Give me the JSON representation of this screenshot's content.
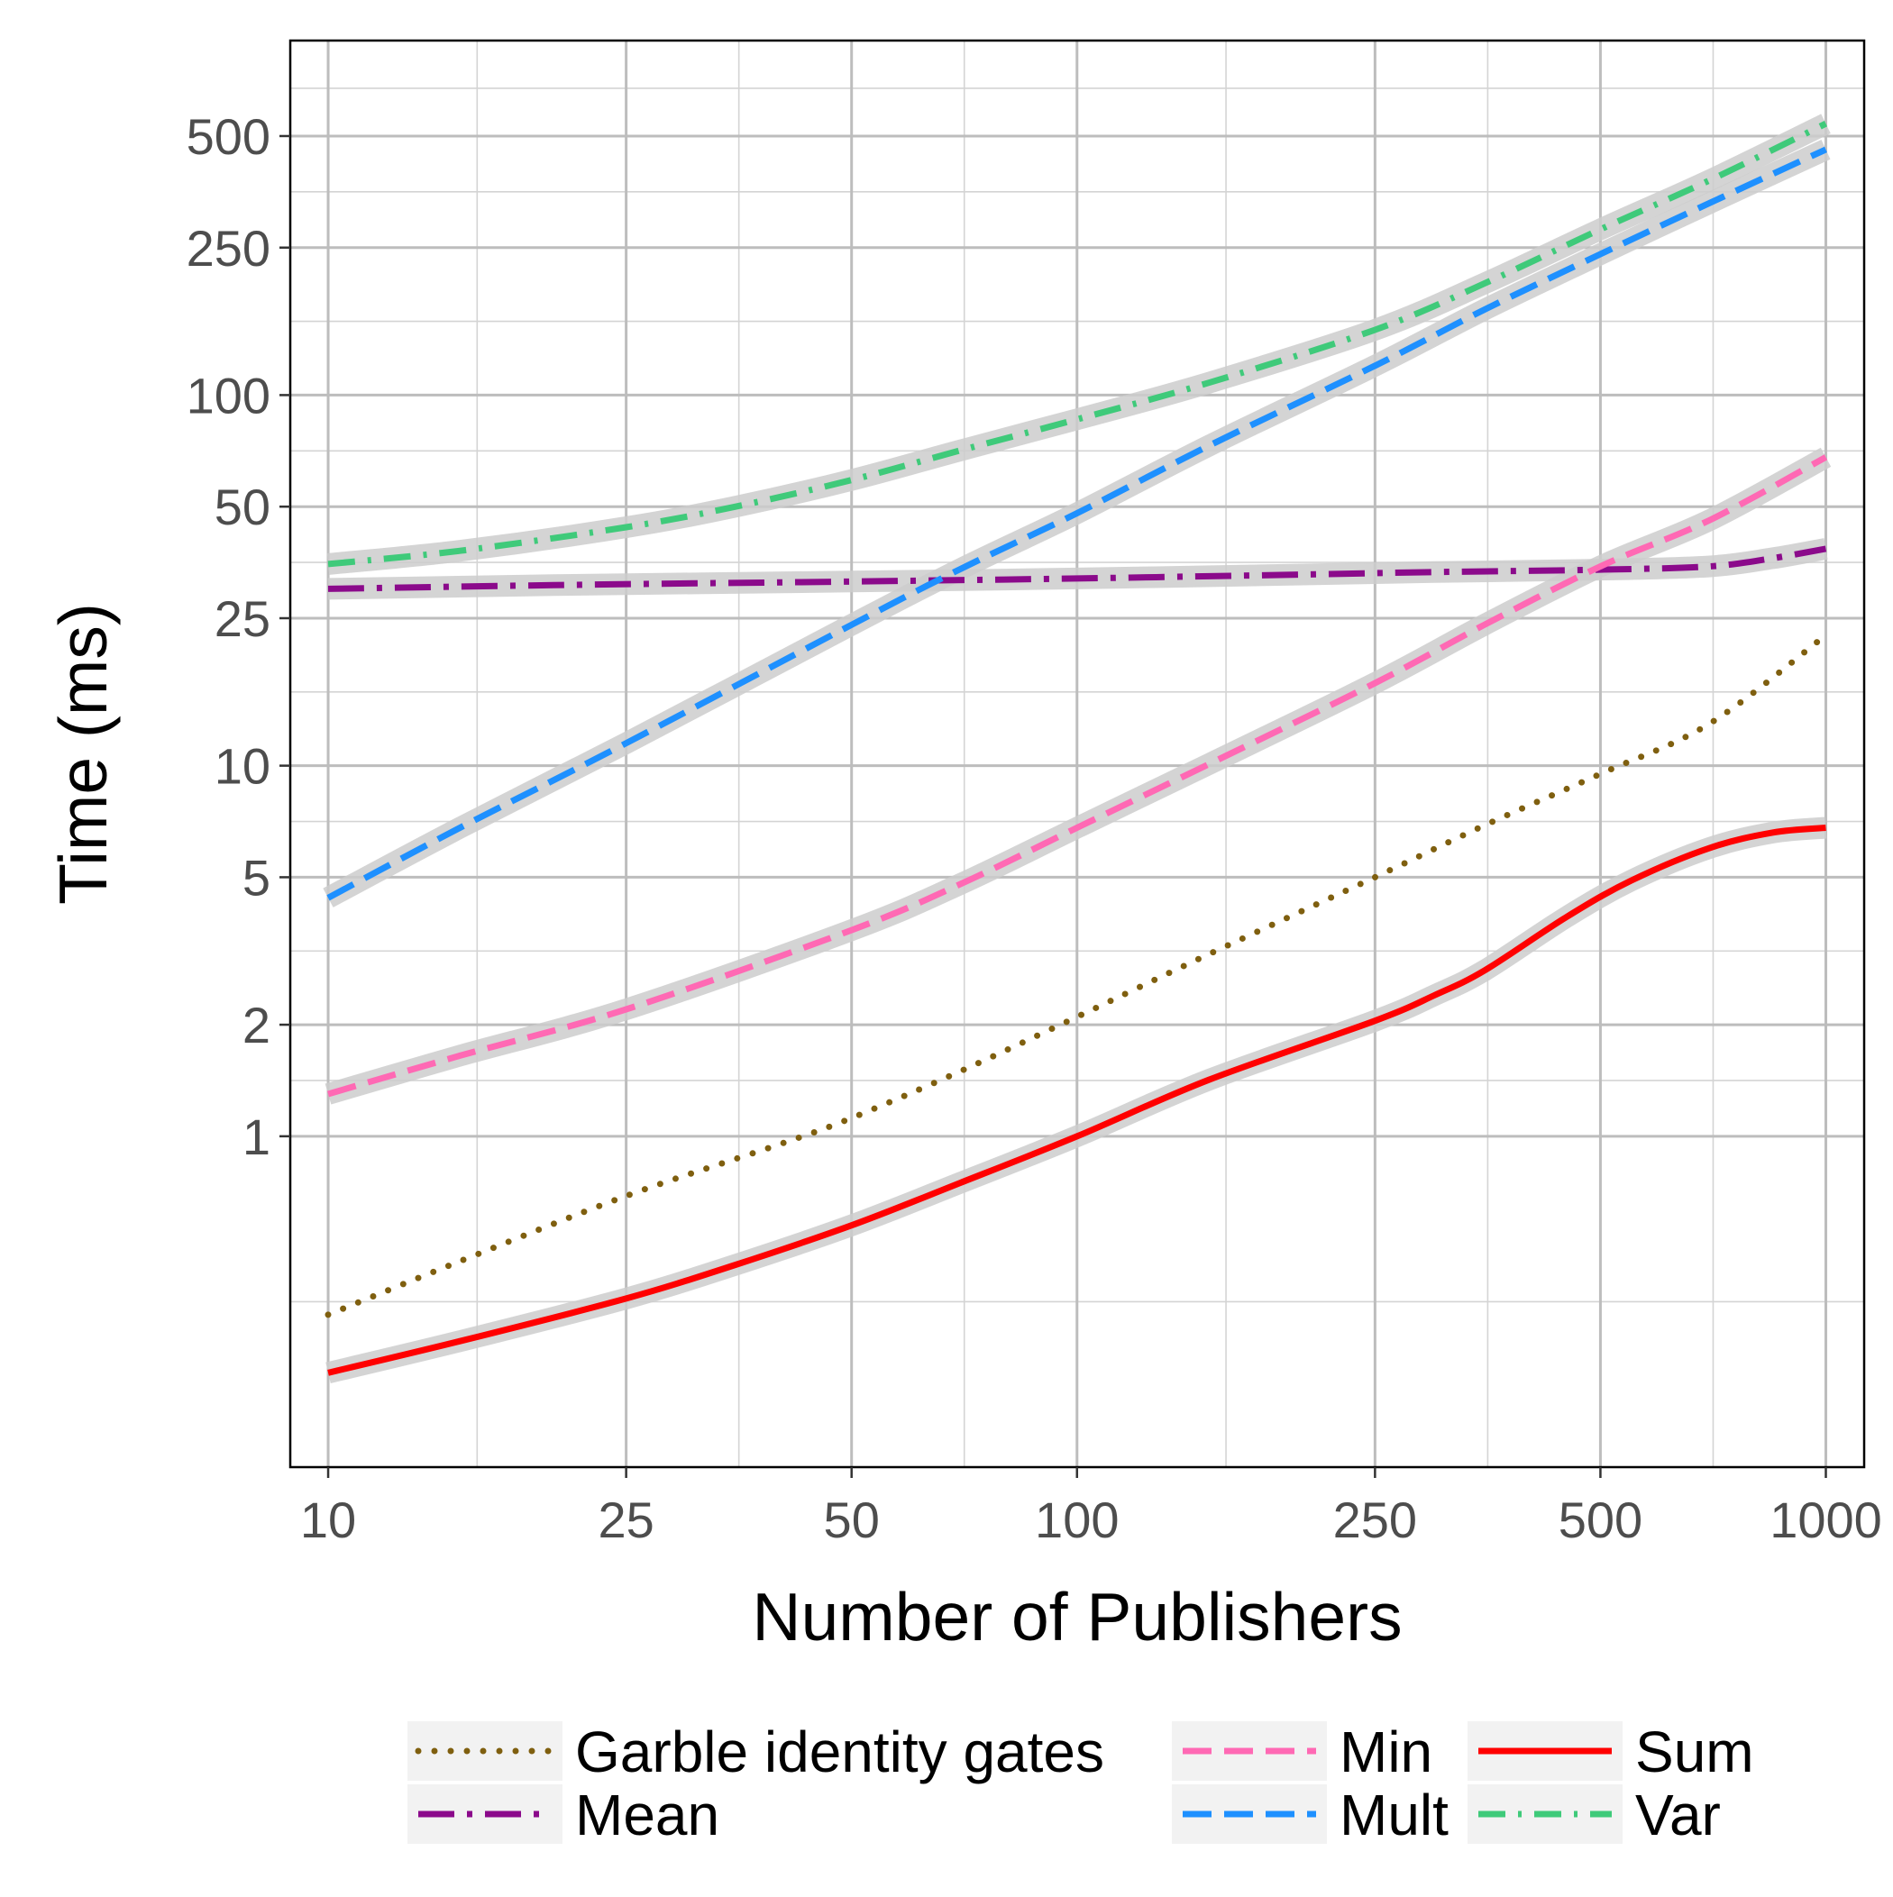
{
  "chart_data": {
    "type": "line",
    "xlabel": "Number of Publishers",
    "ylabel": "Time (ms)",
    "x_scale": "log",
    "y_scale": "log",
    "xlim": [
      8.9,
      1125
    ],
    "ylim": [
      0.128,
      905
    ],
    "x_ticks": [
      10,
      25,
      50,
      100,
      250,
      500,
      1000
    ],
    "x_tick_labels": [
      "10",
      "25",
      "50",
      "100",
      "250",
      "500",
      "1000"
    ],
    "y_ticks": [
      1,
      2,
      5,
      10,
      25,
      50,
      100,
      250,
      500
    ],
    "y_tick_labels": [
      "1",
      "2",
      "5",
      "10",
      "25",
      "50",
      "100",
      "250",
      "500"
    ],
    "grid": true,
    "legend_position": "bottom",
    "series": [
      {
        "name": "Garble identity gates",
        "color": "#7f5f0f",
        "dash": "dotted",
        "band": false,
        "points": [
          [
            10,
            0.33
          ],
          [
            15,
            0.46
          ],
          [
            25,
            0.69
          ],
          [
            40,
            0.95
          ],
          [
            50,
            1.12
          ],
          [
            70,
            1.5
          ],
          [
            100,
            2.1
          ],
          [
            150,
            3.1
          ],
          [
            250,
            5.0
          ],
          [
            350,
            6.9
          ],
          [
            500,
            9.5
          ],
          [
            700,
            13.0
          ],
          [
            1000,
            22.5
          ]
        ]
      },
      {
        "name": "Mean",
        "color": "#8b0a8b",
        "dash": "longdash-dot",
        "band": true,
        "points": [
          [
            10,
            30.0
          ],
          [
            20,
            30.7
          ],
          [
            50,
            31.4
          ],
          [
            100,
            32.0
          ],
          [
            200,
            32.8
          ],
          [
            300,
            33.3
          ],
          [
            500,
            33.8
          ],
          [
            700,
            34.5
          ],
          [
            850,
            36.3
          ],
          [
            1000,
            38.5
          ]
        ]
      },
      {
        "name": "Min",
        "color": "#ff69b4",
        "dash": "dashed",
        "band": true,
        "points": [
          [
            10,
            1.3
          ],
          [
            15,
            1.65
          ],
          [
            25,
            2.2
          ],
          [
            50,
            3.6
          ],
          [
            70,
            4.8
          ],
          [
            100,
            6.8
          ],
          [
            150,
            10.1
          ],
          [
            250,
            16.7
          ],
          [
            350,
            24.0
          ],
          [
            500,
            34.5
          ],
          [
            700,
            46.0
          ],
          [
            1000,
            68.0
          ]
        ]
      },
      {
        "name": "Mult",
        "color": "#1e90ff",
        "dash": "dashed",
        "band": true,
        "points": [
          [
            10,
            4.4
          ],
          [
            15,
            6.8
          ],
          [
            25,
            11.5
          ],
          [
            50,
            24.0
          ],
          [
            70,
            34.0
          ],
          [
            100,
            48.0
          ],
          [
            150,
            73.0
          ],
          [
            250,
            120.0
          ],
          [
            350,
            170.0
          ],
          [
            500,
            240.0
          ],
          [
            700,
            330.0
          ],
          [
            1000,
            460.0
          ]
        ]
      },
      {
        "name": "Sum",
        "color": "#ff0000",
        "dash": "solid",
        "band": true,
        "points": [
          [
            10,
            0.23
          ],
          [
            15,
            0.28
          ],
          [
            25,
            0.365
          ],
          [
            35,
            0.45
          ],
          [
            50,
            0.575
          ],
          [
            70,
            0.75
          ],
          [
            100,
            1.0
          ],
          [
            150,
            1.42
          ],
          [
            250,
            2.05
          ],
          [
            300,
            2.4
          ],
          [
            350,
            2.8
          ],
          [
            450,
            3.9
          ],
          [
            550,
            4.9
          ],
          [
            700,
            6.0
          ],
          [
            850,
            6.6
          ],
          [
            1000,
            6.8
          ]
        ]
      },
      {
        "name": "Var",
        "color": "#3fca7a",
        "dash": "dotdash",
        "band": true,
        "points": [
          [
            10,
            35.0
          ],
          [
            15,
            38.0
          ],
          [
            25,
            44.0
          ],
          [
            35,
            50.0
          ],
          [
            50,
            59.0
          ],
          [
            70,
            71.0
          ],
          [
            100,
            86.0
          ],
          [
            150,
            108.0
          ],
          [
            250,
            150.0
          ],
          [
            350,
            200.0
          ],
          [
            500,
            280.0
          ],
          [
            700,
            380.0
          ],
          [
            1000,
            540.0
          ]
        ]
      }
    ]
  }
}
